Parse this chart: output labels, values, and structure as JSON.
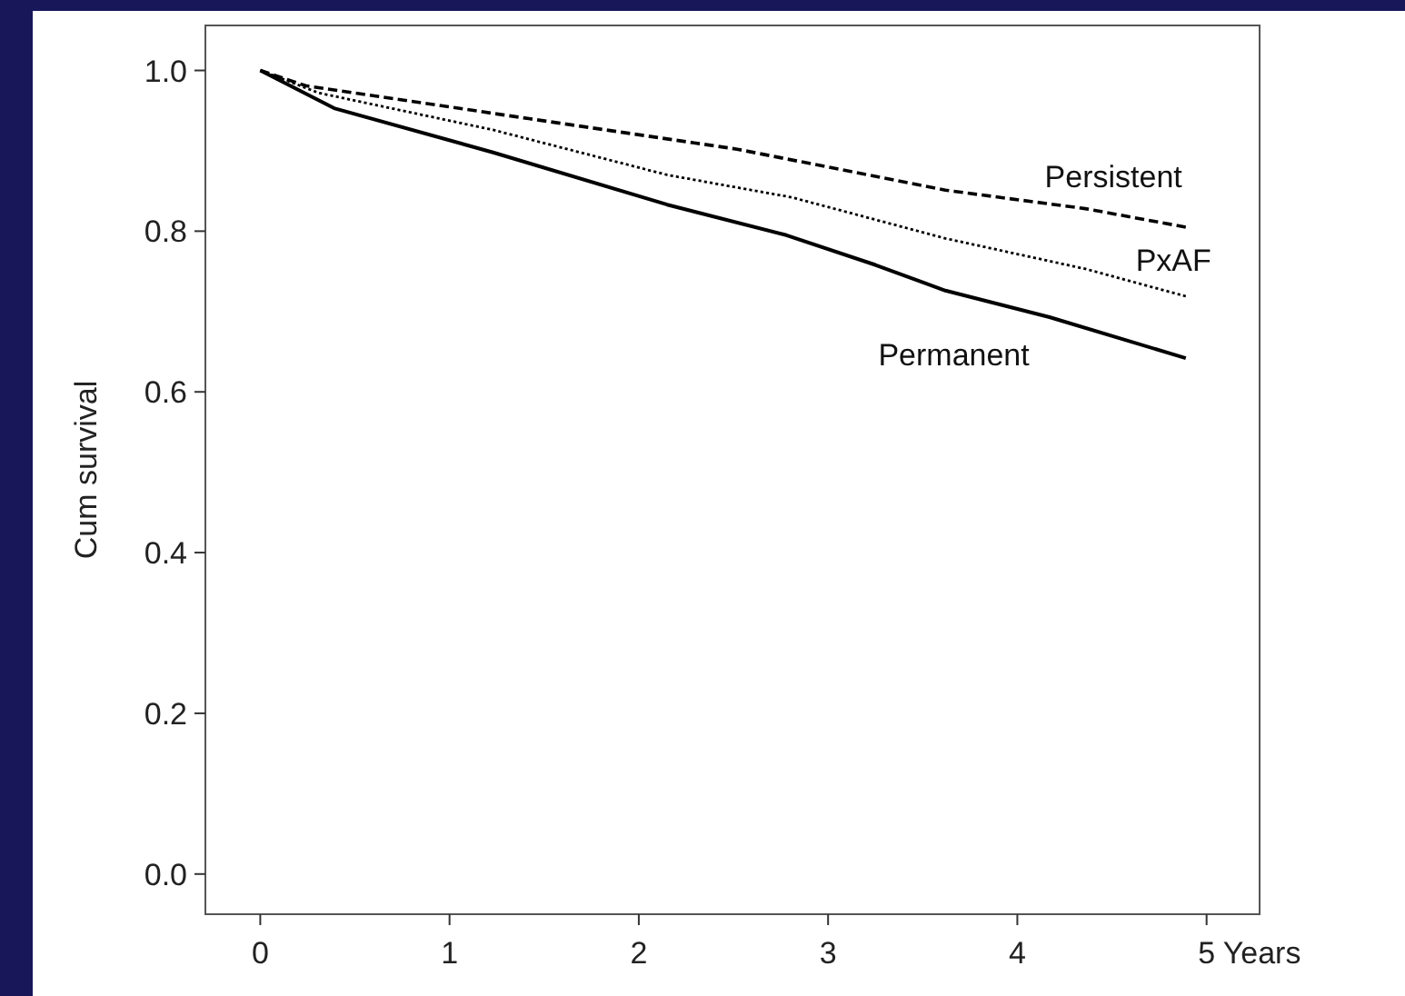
{
  "chart_data": {
    "type": "line",
    "ylabel": "Cum survival",
    "xlabel": "Years",
    "xlim": [
      -0.29,
      5.28
    ],
    "ylim": [
      -0.05,
      1.056
    ],
    "xticks": [
      0,
      1,
      2,
      3,
      4,
      5
    ],
    "yticks": [
      {
        "value": 0,
        "label": "0.0"
      },
      {
        "value": 0.2,
        "label": "0.2"
      },
      {
        "value": 0.4,
        "label": "0.4"
      },
      {
        "value": 0.6,
        "label": "0.6"
      },
      {
        "value": 0.8,
        "label": "0.8"
      },
      {
        "value": 1,
        "label": "1.0"
      }
    ],
    "legend": false,
    "grid": false,
    "marker": "none",
    "series": [
      {
        "name": "Persistent",
        "color": "#000000",
        "line_style": "dashed",
        "x": [
          0,
          0.24,
          1.42,
          2.52,
          3.62,
          4.36,
          4.89
        ],
        "values": [
          1,
          0.981,
          0.94,
          0.902,
          0.851,
          0.828,
          0.805
        ]
      },
      {
        "name": "PxAF",
        "color": "#000000",
        "line_style": "dotted",
        "x": [
          0,
          0.31,
          1.23,
          2.15,
          2.81,
          3.62,
          4.36,
          4.89
        ],
        "values": [
          1,
          0.972,
          0.926,
          0.87,
          0.842,
          0.791,
          0.753,
          0.719
        ]
      },
      {
        "name": "Permanent",
        "color": "#000000",
        "line_style": "solid",
        "x": [
          0,
          0.39,
          1.23,
          2.15,
          2.78,
          3.25,
          3.62,
          4.17,
          4.89
        ],
        "values": [
          1,
          0.953,
          0.898,
          0.833,
          0.795,
          0.758,
          0.726,
          0.693,
          0.642
        ]
      }
    ]
  }
}
